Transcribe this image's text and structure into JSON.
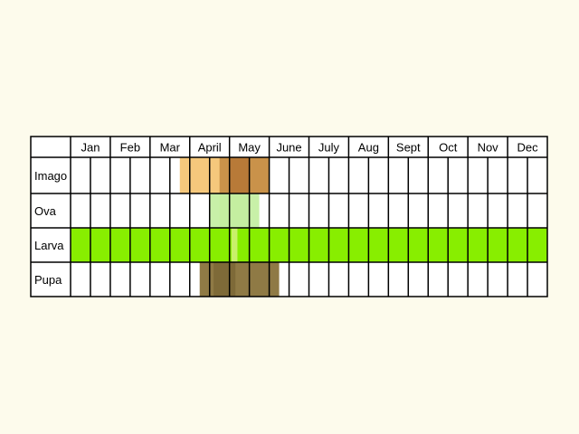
{
  "months": [
    "Jan",
    "Feb",
    "Mar",
    "April",
    "May",
    "June",
    "July",
    "Aug",
    "Sept",
    "Oct",
    "Nov",
    "Dec"
  ],
  "rows": [
    {
      "label": "Imago",
      "bands": [
        {
          "from": 5.5,
          "to": 10,
          "color": "#f5c87c"
        },
        {
          "from": 7.5,
          "to": 8.0,
          "color": "#c9924a"
        },
        {
          "from": 8.0,
          "to": 9.0,
          "color": "#b87a38"
        },
        {
          "from": 9.0,
          "to": 10.0,
          "color": "#c9924a"
        }
      ]
    },
    {
      "label": "Ova",
      "bands": [
        {
          "from": 7,
          "to": 9.5,
          "color": "#c8f0a8"
        },
        {
          "from": 7.5,
          "to": 9.0,
          "color": "#c4eea0"
        }
      ]
    },
    {
      "label": "Larva",
      "bands": [
        {
          "from": 0,
          "to": 24,
          "color": "#88ee00"
        },
        {
          "from": 8.1,
          "to": 8.4,
          "color": "#c8f06a"
        }
      ]
    },
    {
      "label": "Pupa",
      "bands": [
        {
          "from": 6.5,
          "to": 10.5,
          "color": "#8f7a45"
        },
        {
          "from": 7.2,
          "to": 8.3,
          "color": "#7e6a38"
        }
      ]
    }
  ],
  "subdivisions_per_month": 2,
  "colors": {
    "background": "#fdfbec",
    "grid": "#000000",
    "cell": "#ffffff"
  }
}
